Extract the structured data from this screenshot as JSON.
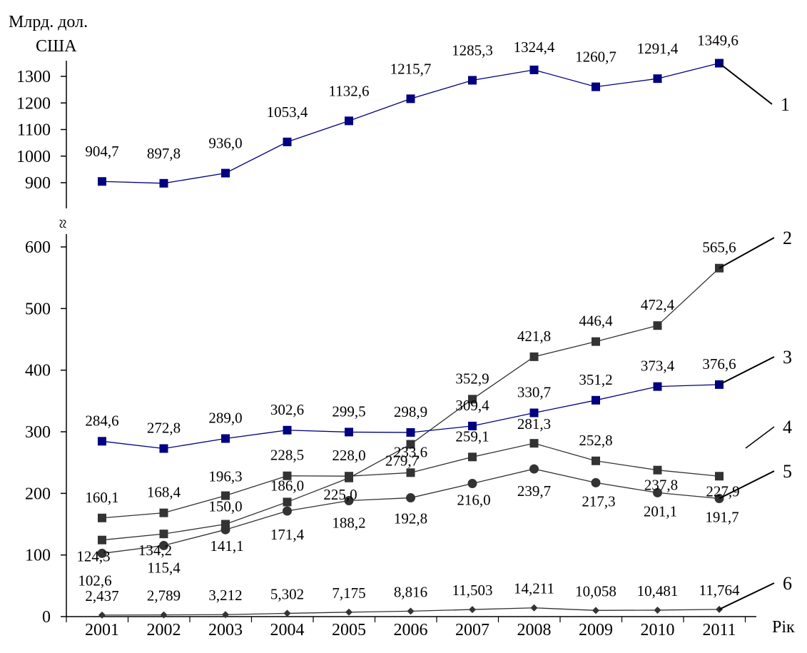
{
  "chart_data": {
    "type": "line",
    "ylabel_line1": "Млрд. дол.",
    "ylabel_line2": "США",
    "xlabel": "Рік",
    "break_symbol": "≈",
    "x": [
      "2001",
      "2002",
      "2003",
      "2004",
      "2005",
      "2006",
      "2007",
      "2008",
      "2009",
      "2010",
      "2011"
    ],
    "y_ticks_upper": [
      "900",
      "1000",
      "1100",
      "1200",
      "1300"
    ],
    "y_ticks_lower": [
      "0",
      "100",
      "200",
      "300",
      "400",
      "500",
      "600"
    ],
    "ylim_lower": [
      0,
      600
    ],
    "ylim_upper": [
      900,
      1300
    ],
    "grid": false,
    "series": [
      {
        "name": "1",
        "marker": "square",
        "color": "#000080",
        "values": [
          904.7,
          897.8,
          936.0,
          1053.4,
          1132.6,
          1215.7,
          1285.3,
          1324.4,
          1260.7,
          1291.4,
          1349.6
        ],
        "labels": [
          "904,7",
          "897,8",
          "936,0",
          "1053,4",
          "1132,6",
          "1215,7",
          "1285,3",
          "1324,4",
          "1260,7",
          "1291,4",
          "1349,6"
        ]
      },
      {
        "name": "2",
        "marker": "square",
        "color": "#333333",
        "values": [
          124.3,
          134.2,
          150.0,
          186.0,
          225.0,
          279.7,
          352.9,
          421.8,
          446.4,
          472.4,
          565.6
        ],
        "labels": [
          "124,3",
          "134,2",
          "150,0",
          "186,0",
          "225,0",
          "279,7",
          "352,9",
          "421,8",
          "446,4",
          "472,4",
          "565,6"
        ]
      },
      {
        "name": "3",
        "marker": "square",
        "color": "#000080",
        "values": [
          284.6,
          272.8,
          289.0,
          302.6,
          299.5,
          298.9,
          309.4,
          330.7,
          351.2,
          373.4,
          376.6
        ],
        "labels": [
          "284,6",
          "272,8",
          "289,0",
          "302,6",
          "299,5",
          "298,9",
          "309,4",
          "330,7",
          "351,2",
          "373,4",
          "376,6"
        ]
      },
      {
        "name": "4",
        "marker": "square",
        "color": "#333333",
        "values": [
          160.1,
          168.4,
          196.3,
          228.5,
          228.0,
          233.6,
          259.1,
          281.3,
          252.8,
          237.8,
          227.9
        ],
        "labels": [
          "160,1",
          "168,4",
          "196,3",
          "228,5",
          "228,0",
          "233,6",
          "259,1",
          "281,3",
          "252,8",
          "237,8",
          "227,9"
        ]
      },
      {
        "name": "5",
        "marker": "circle",
        "color": "#333333",
        "values": [
          102.6,
          115.4,
          141.1,
          171.4,
          188.2,
          192.8,
          216.0,
          239.7,
          217.3,
          201.1,
          191.7
        ],
        "labels": [
          "102,6",
          "115,4",
          "141,1",
          "171,4",
          "188,2",
          "192,8",
          "216,0",
          "239,7",
          "217,3",
          "201,1",
          "191,7"
        ]
      },
      {
        "name": "6",
        "marker": "diamond",
        "color": "#333333",
        "values": [
          2.437,
          2.789,
          3.212,
          5.302,
          7.175,
          8.816,
          11.503,
          14.211,
          10.058,
          10.481,
          11.764
        ],
        "labels": [
          "2,437",
          "2,789",
          "3,212",
          "5,302",
          "7,175",
          "8,816",
          "11,503",
          "14,211",
          "10,058",
          "10,481",
          "11,764"
        ]
      }
    ]
  }
}
